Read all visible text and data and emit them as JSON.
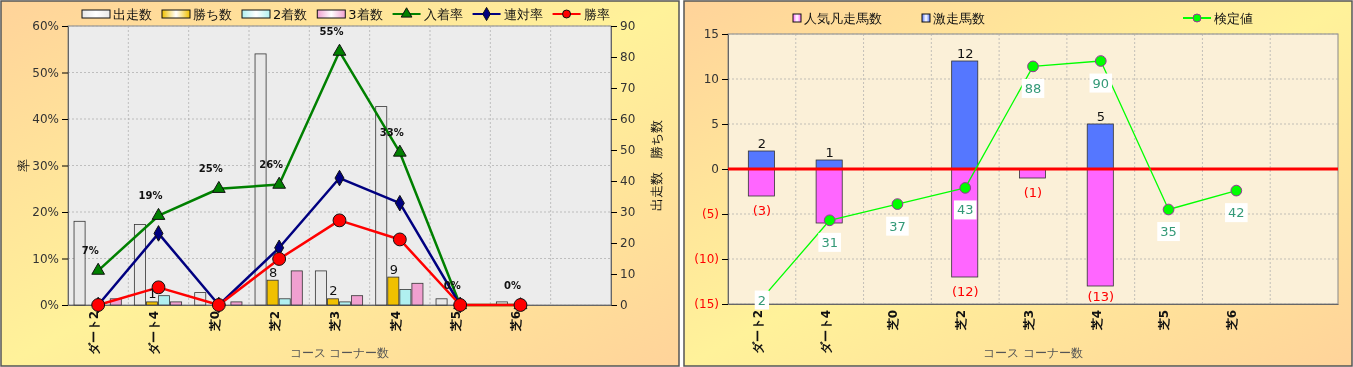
{
  "chart_data": [
    {
      "type": "bar",
      "categories": [
        "ダート2",
        "ダート4",
        "芝0",
        "芝2",
        "芝3",
        "芝4",
        "芝5",
        "芝6",
        null
      ],
      "xlabel": "コース コーナー数",
      "ylabel": "率",
      "y2label": "出走数　勝ち数",
      "ylim": [
        0,
        60
      ],
      "yticks": [
        {
          "value": 0,
          "label": "0%"
        },
        {
          "value": 10,
          "label": "10%"
        },
        {
          "value": 20,
          "label": "20%"
        },
        {
          "value": 30,
          "label": "30%"
        },
        {
          "value": 40,
          "label": "40%"
        },
        {
          "value": 50,
          "label": "50%"
        },
        {
          "value": 60,
          "label": "60%"
        }
      ],
      "y2lim": [
        0,
        90
      ],
      "y2ticks": [
        0,
        10,
        20,
        30,
        40,
        50,
        60,
        70,
        80,
        90
      ],
      "grid": true,
      "legend": "top",
      "series": [
        {
          "name": "出走数",
          "axis": "y2",
          "color": "#e8e8e8",
          "values": [
            27,
            26,
            4,
            81,
            11,
            64,
            2,
            1,
            null
          ]
        },
        {
          "name": "勝ち数",
          "axis": "y2",
          "color": "#f0c000",
          "values": [
            0,
            1,
            0,
            8,
            2,
            9,
            0,
            0,
            null
          ],
          "value_labels": [
            null,
            "1",
            null,
            "8",
            "2",
            "9",
            null,
            null,
            null
          ]
        },
        {
          "name": "2着数",
          "axis": "y2",
          "color": "#b0f0f0",
          "values": [
            0,
            3,
            0,
            2,
            1,
            5,
            0,
            0,
            null
          ]
        },
        {
          "name": "3着数",
          "axis": "y2",
          "color": "#f0a0d0",
          "values": [
            2,
            1,
            1,
            11,
            3,
            7,
            0,
            0,
            null
          ]
        },
        {
          "name": "入着率",
          "type": "line",
          "axis": "y",
          "color": "#008000",
          "marker": "triangle",
          "values": [
            7.4,
            19.2,
            25,
            25.9,
            54.5,
            32.8,
            0,
            0,
            null
          ],
          "value_labels": [
            "7%",
            "19%",
            "25%",
            "26%",
            "55%",
            "33%",
            "0%",
            "0%",
            null
          ]
        },
        {
          "name": "連対率",
          "type": "line",
          "axis": "y",
          "color": "#000080",
          "marker": "diamond",
          "values": [
            0,
            15.4,
            0,
            12.3,
            27.3,
            21.9,
            0,
            null,
            null
          ]
        },
        {
          "name": "勝率",
          "type": "line",
          "axis": "y",
          "color": "#ff0000",
          "marker": "circle",
          "values": [
            0,
            3.8,
            0,
            9.9,
            18.2,
            14.1,
            0,
            0,
            null
          ]
        }
      ]
    },
    {
      "type": "bar",
      "categories": [
        "ダート2",
        "ダート4",
        "芝0",
        "芝2",
        "芝3",
        "芝4",
        "芝5",
        "芝6",
        null
      ],
      "xlabel": "コース コーナー数",
      "ylim": [
        -15,
        15
      ],
      "yticks": [
        {
          "value": -15,
          "label": "(15)"
        },
        {
          "value": -10,
          "label": "(10)"
        },
        {
          "value": -5,
          "label": "(5)"
        },
        0,
        5,
        10,
        15
      ],
      "grid": true,
      "legend": "top",
      "stacked": true,
      "ref_lines": [
        {
          "axis": "y",
          "value": 0,
          "color": "#ff0000"
        }
      ],
      "series": [
        {
          "name": "人気凡走馬数",
          "axis": "y",
          "color": "#ff66ff",
          "values": [
            -3,
            -6,
            null,
            -12,
            -1,
            -13,
            null,
            null,
            null
          ],
          "value_labels": [
            "(3)",
            null,
            null,
            "(12)",
            "(1)",
            "(13)",
            null,
            null,
            null
          ]
        },
        {
          "name": "激走馬数",
          "axis": "y",
          "color": "#5577ff",
          "values": [
            2,
            1,
            null,
            12,
            null,
            5,
            null,
            null,
            null
          ],
          "value_labels": [
            "2",
            "1",
            null,
            "12",
            null,
            "5",
            null,
            null,
            null
          ]
        }
      ]
    },
    {
      "type": "line",
      "categories": [
        null,
        null,
        null,
        null,
        null,
        null,
        null,
        null,
        null
      ],
      "ylim": [
        0,
        100
      ],
      "tick_labels": false,
      "legend": "top right",
      "series": [
        {
          "name": "検定値",
          "color": "#00ff00",
          "marker": "circle",
          "values": [
            2,
            31,
            37,
            43,
            88,
            90,
            35,
            42,
            null
          ],
          "value_labels": [
            "2",
            "31",
            "37",
            "43",
            "88",
            "90",
            "35",
            "42",
            null
          ]
        }
      ]
    }
  ]
}
